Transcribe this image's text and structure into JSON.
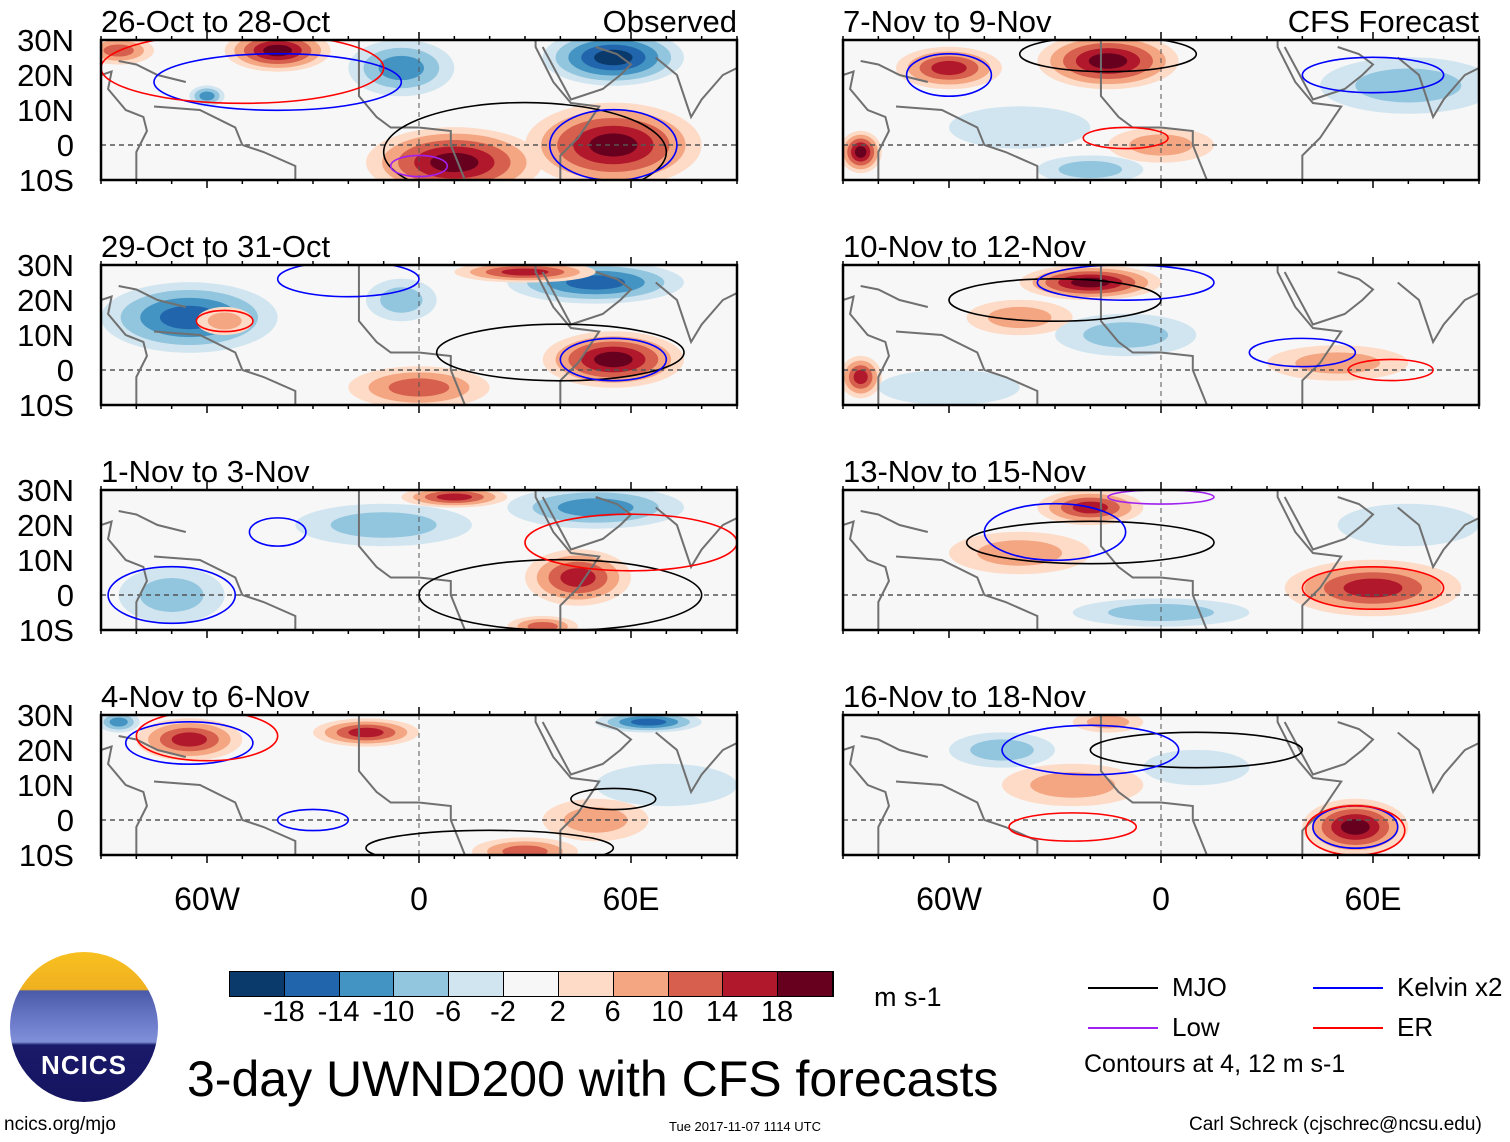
{
  "units": "m s-1",
  "title": "3-day UWND200 with CFS forecasts",
  "footer": {
    "left": "ncics.org/mjo",
    "center": "Tue 2017-11-07 1114 UTC",
    "right": "Carl Schreck (cjschrec@ncsu.edu)"
  },
  "logo_text": "NCICS",
  "column_labels": {
    "left": "Observed",
    "right": "CFS Forecast"
  },
  "lat_ticks": [
    "30N",
    "20N",
    "10N",
    "0",
    "10S"
  ],
  "lon_ticks": [
    "60W",
    "0",
    "60E"
  ],
  "colorbar": {
    "ticks": [
      "-18",
      "-14",
      "-10",
      "-6",
      "-2",
      "2",
      "6",
      "10",
      "14",
      "18"
    ],
    "colors": [
      "#0a3a6c",
      "#2166ac",
      "#4393c3",
      "#92c5de",
      "#d1e5f0",
      "#f7f7f7",
      "#fddbc7",
      "#f4a582",
      "#d6604d",
      "#b2182b",
      "#67001f"
    ]
  },
  "legend": {
    "items": [
      {
        "label": "MJO",
        "color": "#000000"
      },
      {
        "label": "Kelvin x2",
        "color": "#0000ff"
      },
      {
        "label": "Low",
        "color": "#a020f0"
      },
      {
        "label": "ER",
        "color": "#ff0000"
      }
    ],
    "note": "Contours at 4, 12 m s-1"
  },
  "chart_data": {
    "type": "heatmap",
    "lon_range": [
      -90,
      90
    ],
    "lat_range": [
      -10,
      30
    ],
    "coastlines": [
      [
        [
          -90,
          20
        ],
        [
          -87,
          21
        ],
        [
          -88,
          16
        ],
        [
          -83,
          10
        ],
        [
          -78,
          8
        ],
        [
          -77,
          4
        ],
        [
          -80,
          -2
        ],
        [
          -80,
          -10
        ]
      ],
      [
        [
          -75,
          11
        ],
        [
          -62,
          10
        ],
        [
          -52,
          5
        ],
        [
          -50,
          0
        ],
        [
          -44,
          -2
        ],
        [
          -35,
          -6
        ],
        [
          -35,
          -10
        ]
      ],
      [
        [
          -17,
          30
        ],
        [
          -17,
          21
        ],
        [
          -17,
          14
        ],
        [
          -12,
          8
        ],
        [
          -8,
          5
        ],
        [
          0,
          5
        ],
        [
          9,
          4
        ],
        [
          9,
          0
        ],
        [
          13,
          -10
        ]
      ],
      [
        [
          40,
          -10
        ],
        [
          40,
          -3
        ],
        [
          45,
          2
        ],
        [
          51,
          11
        ],
        [
          43,
          12
        ],
        [
          38,
          18
        ],
        [
          33,
          28
        ],
        [
          33,
          30
        ]
      ],
      [
        [
          35,
          28
        ],
        [
          43,
          13
        ],
        [
          52,
          16
        ],
        [
          57,
          20
        ],
        [
          60,
          23
        ],
        [
          56,
          26
        ],
        [
          50,
          28
        ]
      ],
      [
        [
          67,
          25
        ],
        [
          73,
          20
        ],
        [
          77,
          8
        ],
        [
          80,
          13
        ],
        [
          86,
          20
        ],
        [
          90,
          22
        ]
      ],
      [
        [
          -85,
          24
        ],
        [
          -80,
          23
        ],
        [
          -74,
          20
        ],
        [
          -66,
          18
        ]
      ]
    ],
    "panels": [
      {
        "title": "26-Oct to 28-Oct",
        "column": "left",
        "anomalies": [
          [
            -40,
            27,
            15,
            6,
            20
          ],
          [
            -85,
            27,
            10,
            4,
            12
          ],
          [
            10,
            -5,
            25,
            10,
            22
          ],
          [
            55,
            0,
            25,
            12,
            22
          ],
          [
            55,
            25,
            20,
            8,
            -22
          ],
          [
            -5,
            22,
            15,
            8,
            -12
          ],
          [
            -60,
            14,
            5,
            3,
            -12
          ]
        ],
        "contours": [
          [
            "MJO",
            30,
            -2,
            40,
            14
          ],
          [
            "Kelvin",
            -40,
            18,
            35,
            8
          ],
          [
            "ER",
            -50,
            22,
            40,
            10
          ],
          [
            "Kelvin",
            55,
            0,
            18,
            10
          ],
          [
            "Low",
            0,
            -6,
            8,
            3
          ]
        ]
      },
      {
        "title": "29-Oct to 31-Oct",
        "column": "left",
        "anomalies": [
          [
            -65,
            15,
            25,
            10,
            -18
          ],
          [
            50,
            25,
            25,
            6,
            -18
          ],
          [
            -5,
            20,
            10,
            6,
            -8
          ],
          [
            30,
            28,
            20,
            3,
            16
          ],
          [
            55,
            3,
            20,
            8,
            22
          ],
          [
            0,
            -5,
            20,
            6,
            12
          ],
          [
            -55,
            14,
            8,
            4,
            10
          ]
        ],
        "contours": [
          [
            "MJO",
            40,
            5,
            35,
            8
          ],
          [
            "Kelvin",
            55,
            3,
            15,
            6
          ],
          [
            "ER",
            -55,
            14,
            8,
            3
          ],
          [
            "Kelvin",
            -20,
            26,
            20,
            5
          ]
        ]
      },
      {
        "title": "1-Nov to 3-Nov",
        "column": "left",
        "anomalies": [
          [
            10,
            28,
            15,
            3,
            18
          ],
          [
            45,
            5,
            15,
            8,
            18
          ],
          [
            35,
            -9,
            10,
            3,
            12
          ],
          [
            50,
            25,
            25,
            6,
            -14
          ],
          [
            -10,
            20,
            25,
            6,
            -10
          ],
          [
            -70,
            0,
            15,
            8,
            -8
          ]
        ],
        "contours": [
          [
            "MJO",
            40,
            0,
            40,
            10
          ],
          [
            "ER",
            60,
            15,
            30,
            8
          ],
          [
            "Kelvin",
            -70,
            0,
            18,
            8
          ],
          [
            "Kelvin",
            -40,
            18,
            8,
            4
          ]
        ]
      },
      {
        "title": "4-Nov to 6-Nov",
        "column": "left",
        "anomalies": [
          [
            -65,
            23,
            15,
            6,
            18
          ],
          [
            -15,
            25,
            15,
            4,
            16
          ],
          [
            50,
            0,
            15,
            6,
            10
          ],
          [
            30,
            -9,
            15,
            4,
            14
          ],
          [
            65,
            28,
            15,
            3,
            -18
          ],
          [
            -85,
            28,
            6,
            3,
            -14
          ],
          [
            70,
            10,
            20,
            6,
            -6
          ]
        ],
        "contours": [
          [
            "Kelvin",
            -65,
            22,
            18,
            6
          ],
          [
            "ER",
            -60,
            24,
            20,
            7
          ],
          [
            "MJO",
            55,
            6,
            12,
            3
          ],
          [
            "Kelvin",
            -30,
            0,
            10,
            3
          ],
          [
            "MJO",
            20,
            -8,
            35,
            5
          ]
        ]
      },
      {
        "title": "7-Nov to 9-Nov",
        "column": "right",
        "anomalies": [
          [
            -60,
            22,
            15,
            6,
            16
          ],
          [
            -15,
            24,
            20,
            8,
            20
          ],
          [
            -85,
            -2,
            6,
            6,
            20
          ],
          [
            0,
            0,
            15,
            5,
            8
          ],
          [
            70,
            17,
            25,
            8,
            -8
          ],
          [
            -40,
            5,
            20,
            6,
            -6
          ],
          [
            -20,
            -7,
            15,
            4,
            -10
          ]
        ],
        "contours": [
          [
            "MJO",
            -15,
            26,
            25,
            5
          ],
          [
            "Kelvin",
            -60,
            20,
            12,
            6
          ],
          [
            "ER",
            -10,
            2,
            12,
            3
          ],
          [
            "Kelvin",
            60,
            20,
            20,
            5
          ]
        ]
      },
      {
        "title": "10-Nov to 12-Nov",
        "column": "right",
        "anomalies": [
          [
            -20,
            25,
            20,
            5,
            20
          ],
          [
            -85,
            -2,
            6,
            6,
            18
          ],
          [
            50,
            2,
            20,
            5,
            10
          ],
          [
            -40,
            15,
            15,
            5,
            8
          ],
          [
            -10,
            10,
            20,
            6,
            -8
          ],
          [
            -60,
            -5,
            20,
            5,
            -6
          ]
        ],
        "contours": [
          [
            "MJO",
            -30,
            20,
            30,
            6
          ],
          [
            "Kelvin",
            -10,
            25,
            25,
            5
          ],
          [
            "ER",
            65,
            0,
            12,
            3
          ],
          [
            "Kelvin",
            40,
            5,
            15,
            4
          ]
        ]
      },
      {
        "title": "13-Nov to 15-Nov",
        "column": "right",
        "anomalies": [
          [
            -20,
            25,
            15,
            5,
            16
          ],
          [
            60,
            2,
            25,
            8,
            16
          ],
          [
            -40,
            12,
            20,
            6,
            8
          ],
          [
            70,
            20,
            20,
            6,
            -6
          ],
          [
            0,
            -5,
            25,
            4,
            -8
          ]
        ],
        "contours": [
          [
            "MJO",
            -20,
            15,
            35,
            6
          ],
          [
            "ER",
            60,
            2,
            20,
            6
          ],
          [
            "Kelvin",
            -30,
            18,
            20,
            8
          ],
          [
            "Low",
            0,
            28,
            15,
            2
          ]
        ]
      },
      {
        "title": "16-Nov to 18-Nov",
        "column": "right",
        "anomalies": [
          [
            55,
            -2,
            15,
            8,
            20
          ],
          [
            -25,
            10,
            20,
            6,
            10
          ],
          [
            -15,
            28,
            10,
            3,
            8
          ],
          [
            -45,
            20,
            15,
            5,
            -10
          ],
          [
            10,
            15,
            15,
            5,
            -6
          ]
        ],
        "contours": [
          [
            "Kelvin",
            55,
            -2,
            12,
            6
          ],
          [
            "ER",
            55,
            -3,
            14,
            7
          ],
          [
            "MJO",
            10,
            20,
            30,
            5
          ],
          [
            "ER",
            -25,
            -2,
            18,
            4
          ],
          [
            "Kelvin",
            -20,
            20,
            25,
            7
          ]
        ]
      }
    ]
  }
}
